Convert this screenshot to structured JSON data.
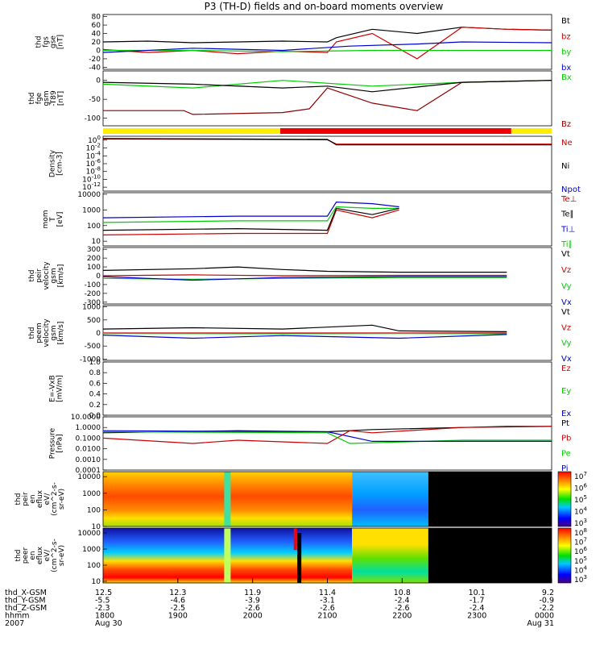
{
  "chart_data": {
    "type": "line",
    "title": "P3 (TH-D) fields and on-board moments overview",
    "panels": [
      {
        "id": "fgs",
        "ylabel": [
          "thd",
          "fgs",
          "gse",
          "[nT]"
        ],
        "ticks": [
          "80",
          "60",
          "40",
          "20",
          "0",
          "-20",
          "-40"
        ],
        "ylim": [
          -45,
          85
        ],
        "scale": "linear",
        "legend": [
          {
            "label": "Bt",
            "color": "#000000"
          },
          {
            "label": "bz",
            "color": "#cc0000"
          },
          {
            "label": "by",
            "color": "#00cc00"
          },
          {
            "label": "bx",
            "color": "#0000cc"
          }
        ],
        "series": [
          {
            "name": "Bt",
            "color": "#000000",
            "x": [
              0,
              0.1,
              0.2,
              0.3,
              0.4,
              0.5,
              0.52,
              0.6,
              0.7,
              0.8,
              0.9,
              1.0
            ],
            "y": [
              20,
              22,
              18,
              20,
              22,
              20,
              30,
              50,
              40,
              55,
              50,
              48
            ]
          },
          {
            "name": "bz",
            "color": "#cc0000",
            "x": [
              0,
              0.1,
              0.2,
              0.3,
              0.4,
              0.5,
              0.52,
              0.6,
              0.7,
              0.8,
              0.9,
              1.0
            ],
            "y": [
              2,
              -5,
              0,
              -8,
              -2,
              -5,
              20,
              40,
              -20,
              55,
              50,
              48
            ]
          },
          {
            "name": "by",
            "color": "#00cc00",
            "x": [
              0,
              0.2,
              0.4,
              0.6,
              0.8,
              1.0
            ],
            "y": [
              0,
              0,
              -3,
              0,
              0,
              0
            ]
          },
          {
            "name": "bx",
            "color": "#0000cc",
            "x": [
              0,
              0.2,
              0.4,
              0.55,
              0.7,
              0.8,
              1.0
            ],
            "y": [
              -5,
              5,
              0,
              10,
              15,
              20,
              18
            ]
          }
        ]
      },
      {
        "id": "fge",
        "ylabel": [
          "thd",
          "fge",
          "gsm",
          "-T89",
          "[nT]"
        ],
        "ticks": [
          "0",
          "-50",
          "-100"
        ],
        "ylim": [
          -120,
          25
        ],
        "scale": "linear",
        "legend": [
          {
            "label": "Bx",
            "color": "#00cc00"
          },
          {
            "label": "Bz",
            "color": "#8b0000"
          }
        ],
        "series": [
          {
            "name": "Bx",
            "color": "#00cc00",
            "x": [
              0,
              0.2,
              0.4,
              0.6,
              0.8,
              1.0
            ],
            "y": [
              -10,
              -20,
              0,
              -15,
              -5,
              0
            ]
          },
          {
            "name": "Bz",
            "color": "#8b0000",
            "x": [
              0,
              0.18,
              0.2,
              0.4,
              0.46,
              0.5,
              0.6,
              0.7,
              0.8,
              1.0
            ],
            "y": [
              -80,
              -80,
              -90,
              -85,
              -75,
              -20,
              -60,
              -80,
              -5,
              0
            ]
          },
          {
            "name": "Bt",
            "color": "#000000",
            "x": [
              0,
              0.2,
              0.4,
              0.5,
              0.6,
              0.8,
              1.0
            ],
            "y": [
              -5,
              -10,
              -20,
              -15,
              -30,
              -5,
              0
            ]
          }
        ]
      },
      {
        "id": "density",
        "ylabel": [
          "Density",
          "[cm-3]"
        ],
        "ticks": [
          "10^0",
          "10^-2",
          "10^-4",
          "10^-6",
          "10^-8",
          "10^-10",
          "10^-12"
        ],
        "ylim": [
          -13,
          1
        ],
        "scale": "log",
        "legend": [
          {
            "label": "Ne",
            "color": "#cc0000"
          },
          {
            "label": "Ni",
            "color": "#000000"
          },
          {
            "label": "Npot",
            "color": "#0000cc"
          }
        ],
        "series": [
          {
            "name": "Ne",
            "color": "#cc0000",
            "x": [
              0,
              0.3,
              0.5,
              0.52,
              0.9,
              1.0
            ],
            "y": [
              0.3,
              0.2,
              0.1,
              -1,
              -1,
              -1
            ]
          },
          {
            "name": "Ni",
            "color": "#000000",
            "x": [
              0,
              0.3,
              0.5,
              0.52,
              0.9,
              1.0
            ],
            "y": [
              0.4,
              0.3,
              0.2,
              -1.2,
              -1.2,
              -1.2
            ]
          }
        ]
      },
      {
        "id": "temperature",
        "ylabel": [
          "mom",
          "T",
          "[eV]"
        ],
        "ticks": [
          "10000",
          "1000",
          "100",
          "10"
        ],
        "ylim": [
          0.7,
          4.1
        ],
        "scale": "log",
        "legend": [
          {
            "label": "Te⊥",
            "color": "#cc0000"
          },
          {
            "label": "Te∥",
            "color": "#000000"
          },
          {
            "label": "Ti⊥",
            "color": "#0000cc"
          },
          {
            "label": "Ti∥",
            "color": "#00cc00"
          }
        ],
        "series": [
          {
            "name": "Ti⊥",
            "color": "#0000cc",
            "x": [
              0,
              0.3,
              0.5,
              0.52,
              0.6,
              0.66
            ],
            "y": [
              2.5,
              2.6,
              2.6,
              3.5,
              3.4,
              3.2
            ]
          },
          {
            "name": "Ti∥",
            "color": "#00cc00",
            "x": [
              0,
              0.3,
              0.5,
              0.52,
              0.6,
              0.66
            ],
            "y": [
              2.2,
              2.3,
              2.3,
              3.2,
              3.1,
              3.1
            ]
          },
          {
            "name": "Te⊥",
            "color": "#cc0000",
            "x": [
              0,
              0.3,
              0.5,
              0.52,
              0.6,
              0.66
            ],
            "y": [
              1.4,
              1.5,
              1.5,
              3.0,
              2.5,
              3.0
            ]
          },
          {
            "name": "Te∥",
            "color": "#000000",
            "x": [
              0,
              0.3,
              0.5,
              0.52,
              0.6,
              0.66
            ],
            "y": [
              1.7,
              1.8,
              1.7,
              3.1,
              2.7,
              3.1
            ]
          }
        ]
      },
      {
        "id": "peir_velocity",
        "ylabel": [
          "thd",
          "peir",
          "velocity",
          "gsm",
          "[km/s]"
        ],
        "ticks": [
          "300",
          "200",
          "100",
          "0",
          "-100",
          "-200",
          "-300"
        ],
        "ylim": [
          -320,
          320
        ],
        "scale": "linear",
        "legend": [
          {
            "label": "Vt",
            "color": "#000000"
          },
          {
            "label": "Vz",
            "color": "#cc0000"
          },
          {
            "label": "Vy",
            "color": "#00cc00"
          },
          {
            "label": "Vx",
            "color": "#0000cc"
          }
        ],
        "series": [
          {
            "name": "Vt",
            "color": "#000000",
            "x": [
              0,
              0.2,
              0.3,
              0.4,
              0.5,
              0.66,
              0.9
            ],
            "y": [
              60,
              80,
              100,
              70,
              50,
              40,
              40
            ]
          },
          {
            "name": "Vz",
            "color": "#cc0000",
            "x": [
              0,
              0.2,
              0.4,
              0.66,
              0.9
            ],
            "y": [
              0,
              10,
              0,
              5,
              5
            ]
          },
          {
            "name": "Vy",
            "color": "#00cc00",
            "x": [
              0,
              0.2,
              0.4,
              0.66,
              0.9
            ],
            "y": [
              -30,
              -40,
              -30,
              -20,
              -20
            ]
          },
          {
            "name": "Vx",
            "color": "#0000cc",
            "x": [
              0,
              0.2,
              0.4,
              0.66,
              0.9
            ],
            "y": [
              -10,
              -50,
              -20,
              -10,
              -10
            ]
          }
        ]
      },
      {
        "id": "peem_velocity",
        "ylabel": [
          "thd",
          "peem",
          "velocity",
          "gsm",
          "[km/s]"
        ],
        "ticks": [
          "1000",
          "500",
          "0",
          "-500",
          "-1000"
        ],
        "ylim": [
          -1050,
          1050
        ],
        "scale": "linear",
        "legend": [
          {
            "label": "Vt",
            "color": "#000000"
          },
          {
            "label": "Vz",
            "color": "#cc0000"
          },
          {
            "label": "Vy",
            "color": "#00cc00"
          },
          {
            "label": "Vx",
            "color": "#0000cc"
          }
        ],
        "series": [
          {
            "name": "Vt",
            "color": "#000000",
            "x": [
              0,
              0.2,
              0.4,
              0.6,
              0.66,
              0.9
            ],
            "y": [
              150,
              200,
              150,
              300,
              80,
              50
            ]
          },
          {
            "name": "Vz",
            "color": "#cc0000",
            "x": [
              0,
              0.4,
              0.66,
              0.9
            ],
            "y": [
              0,
              0,
              0,
              0
            ]
          },
          {
            "name": "Vy",
            "color": "#00cc00",
            "x": [
              0,
              0.4,
              0.66,
              0.9
            ],
            "y": [
              -20,
              -30,
              -20,
              -30
            ]
          },
          {
            "name": "Vx",
            "color": "#0000cc",
            "x": [
              0,
              0.2,
              0.4,
              0.66,
              0.9
            ],
            "y": [
              -80,
              -200,
              -100,
              -200,
              -60
            ]
          }
        ]
      },
      {
        "id": "efield",
        "ylabel": [
          "E=-VxB",
          "[mV/m]"
        ],
        "ticks": [
          "1.0",
          "0.8",
          "0.6",
          "0.4",
          "0.2",
          "0.0"
        ],
        "ylim": [
          0,
          1
        ],
        "scale": "linear",
        "legend": [
          {
            "label": "Ez",
            "color": "#cc0000"
          },
          {
            "label": "Ey",
            "color": "#00cc00"
          },
          {
            "label": "Ex",
            "color": "#0000cc"
          }
        ],
        "series": []
      },
      {
        "id": "pressure",
        "ylabel": [
          "Pressure",
          "[nPa]"
        ],
        "ticks": [
          "10.0000",
          "1.0000",
          "0.1000",
          "0.0100",
          "0.0010",
          "0.0001"
        ],
        "ylim": [
          -4,
          1
        ],
        "scale": "log",
        "legend": [
          {
            "label": "Pt",
            "color": "#000000"
          },
          {
            "label": "Pb",
            "color": "#cc0000"
          },
          {
            "label": "Pe",
            "color": "#00cc00"
          },
          {
            "label": "Pi",
            "color": "#0000cc"
          }
        ],
        "series": [
          {
            "name": "Pt",
            "color": "#000000",
            "x": [
              0,
              0.3,
              0.5,
              0.6,
              0.8,
              0.9,
              1.0
            ],
            "y": [
              -0.5,
              -0.3,
              -0.4,
              -0.2,
              0,
              0.1,
              0.1
            ]
          },
          {
            "name": "Pb",
            "color": "#cc0000",
            "x": [
              0,
              0.2,
              0.3,
              0.5,
              0.55,
              0.6,
              0.8,
              1.0
            ],
            "y": [
              -1,
              -1.5,
              -1.2,
              -1.5,
              -0.3,
              -0.5,
              0,
              0.1
            ]
          },
          {
            "name": "Pe",
            "color": "#00cc00",
            "x": [
              0,
              0.5,
              0.55,
              0.8,
              1.0
            ],
            "y": [
              -0.4,
              -0.5,
              -1.5,
              -1.2,
              -1.2
            ]
          },
          {
            "name": "Pi",
            "color": "#0000cc",
            "x": [
              0,
              0.5,
              0.6,
              1.0
            ],
            "y": [
              -0.3,
              -0.4,
              -1.3,
              -1.3
            ]
          }
        ]
      },
      {
        "id": "peir_en_eflux",
        "ylabel": [
          "thd",
          "peir",
          "en",
          "eflux",
          "eV/",
          "(cm^2-s-",
          "sr-eV)"
        ],
        "ticks": [
          "10000",
          "1000",
          "100",
          "10"
        ],
        "ylim": [
          1,
          4.3
        ],
        "scale": "log",
        "legend": [],
        "series": [],
        "colorbar": [
          "10^7",
          "10^6",
          "10^5",
          "10^4",
          "10^3"
        ]
      },
      {
        "id": "peer_en_eflux",
        "ylabel": [
          "thd",
          "peer",
          "en",
          "eflux",
          "eV/",
          "(cm^2-s-",
          "sr-eV)"
        ],
        "ticks": [
          "10000",
          "1000",
          "100",
          "10"
        ],
        "ylim": [
          0.9,
          4.3
        ],
        "scale": "log",
        "legend": [],
        "series": [],
        "colorbar": [
          "10^8",
          "10^7",
          "10^6",
          "10^5",
          "10^4",
          "10^3"
        ]
      }
    ],
    "mode_bar": [
      {
        "from": 0,
        "to": 0.395,
        "color": "#ffee00"
      },
      {
        "from": 0.395,
        "to": 0.91,
        "color": "#ee0000"
      },
      {
        "from": 0.91,
        "to": 1,
        "color": "#ffee00"
      }
    ],
    "xaxis": {
      "rows": [
        {
          "label": "thd_X-GSM",
          "values": [
            "12.5",
            "12.3",
            "11.9",
            "11.4",
            "10.8",
            "10.1",
            "9.2"
          ]
        },
        {
          "label": "thd_Y-GSM",
          "values": [
            "-5.5",
            "-4.6",
            "-3.9",
            "-3.1",
            "-2.4",
            "-1.7",
            "-0.9"
          ]
        },
        {
          "label": "thd_Z-GSM",
          "values": [
            "-2.3",
            "-2.5",
            "-2.6",
            "-2.6",
            "-2.6",
            "-2.4",
            "-2.2"
          ]
        },
        {
          "label": "hhmm",
          "values": [
            "1800",
            "1900",
            "2000",
            "2100",
            "2200",
            "2300",
            "0000"
          ]
        },
        {
          "label": "2007",
          "values": [
            "Aug 30",
            "",
            "",
            "",
            "",
            "",
            "Aug 31"
          ]
        }
      ]
    }
  }
}
